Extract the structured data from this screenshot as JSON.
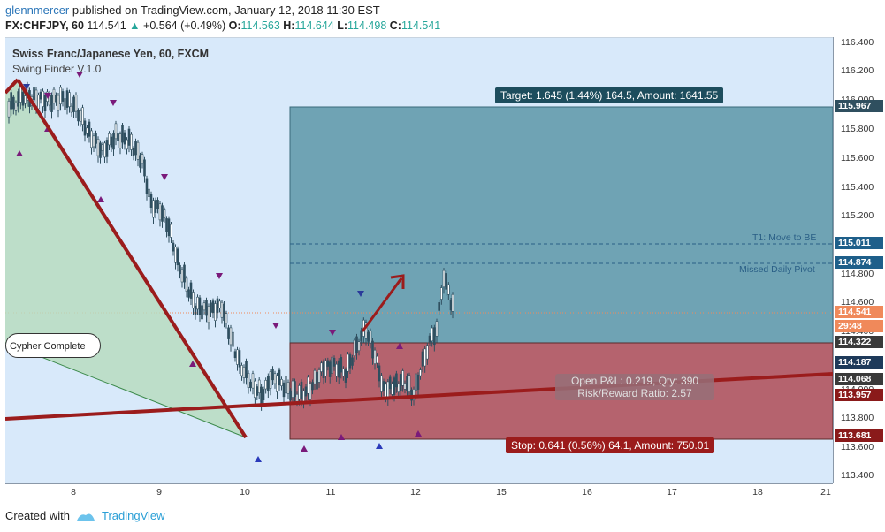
{
  "header": {
    "author": "glennmercer",
    "published": " published on TradingView.com, January 12, 2018 11:30 EST",
    "symbol": "FX:CHFJPY, 60",
    "last": "114.541",
    "change": "+0.564 (+0.49%)",
    "o_label": "O:",
    "o_value": "114.563",
    "h_label": "H:",
    "h_value": "114.644",
    "l_label": "L:",
    "l_value": "114.498",
    "c_label": "C:",
    "c_value": "114.541"
  },
  "chart": {
    "symbol_title": "Swiss Franc/Japanese Yen, 60, FXCM",
    "indicator_title": "Swing Finder V.1.0",
    "callout": "Cypher Complete",
    "target_label": "Target: 1.645 (1.44%) 164.5, Amount: 1641.55",
    "stop_label": "Stop: 0.641 (0.56%) 64.1, Amount: 750.01",
    "pnl_line1": "Open P&L: 0.219, Qty: 390",
    "pnl_line2": "Risk/Reward Ratio: 2.57",
    "t1_label": "T1:  Move to BE",
    "pivot_label": "Missed Daily Pivot",
    "colors": {
      "background": "#d8e9fa",
      "target_zone": "#6fa3b4",
      "stop_zone": "#b5636e",
      "trend_line": "#9b1c1c",
      "pattern_fill": "#b8dcc0",
      "candle": "#2f4f5f"
    }
  },
  "y_axis": {
    "ticks": [
      "116.400",
      "116.200",
      "116.000",
      "115.800",
      "115.600",
      "115.400",
      "115.200",
      "115.000",
      "114.800",
      "114.600",
      "114.400",
      "114.200",
      "114.000",
      "113.800",
      "113.600",
      "113.400"
    ],
    "flags": [
      {
        "text": "115.967",
        "color": "#2f4f5f"
      },
      {
        "text": "115.011",
        "color": "#1e5f8a"
      },
      {
        "text": "114.874",
        "color": "#1e5f8a"
      },
      {
        "text": "114.541",
        "color": "#f0895a"
      },
      {
        "text": "29:48",
        "color": "#f0895a"
      },
      {
        "text": "114.322",
        "color": "#3a3a3a"
      },
      {
        "text": "114.187",
        "color": "#1e3a5a"
      },
      {
        "text": "114.068",
        "color": "#3a3a3a"
      },
      {
        "text": "113.957",
        "color": "#8a1a1a"
      },
      {
        "text": "113.681",
        "color": "#8a1a1a"
      }
    ]
  },
  "x_axis": {
    "ticks": [
      "8",
      "9",
      "10",
      "11",
      "12",
      "15",
      "16",
      "17",
      "18",
      "21"
    ]
  },
  "footer": {
    "created_with": "Created with",
    "brand": "TradingView"
  }
}
